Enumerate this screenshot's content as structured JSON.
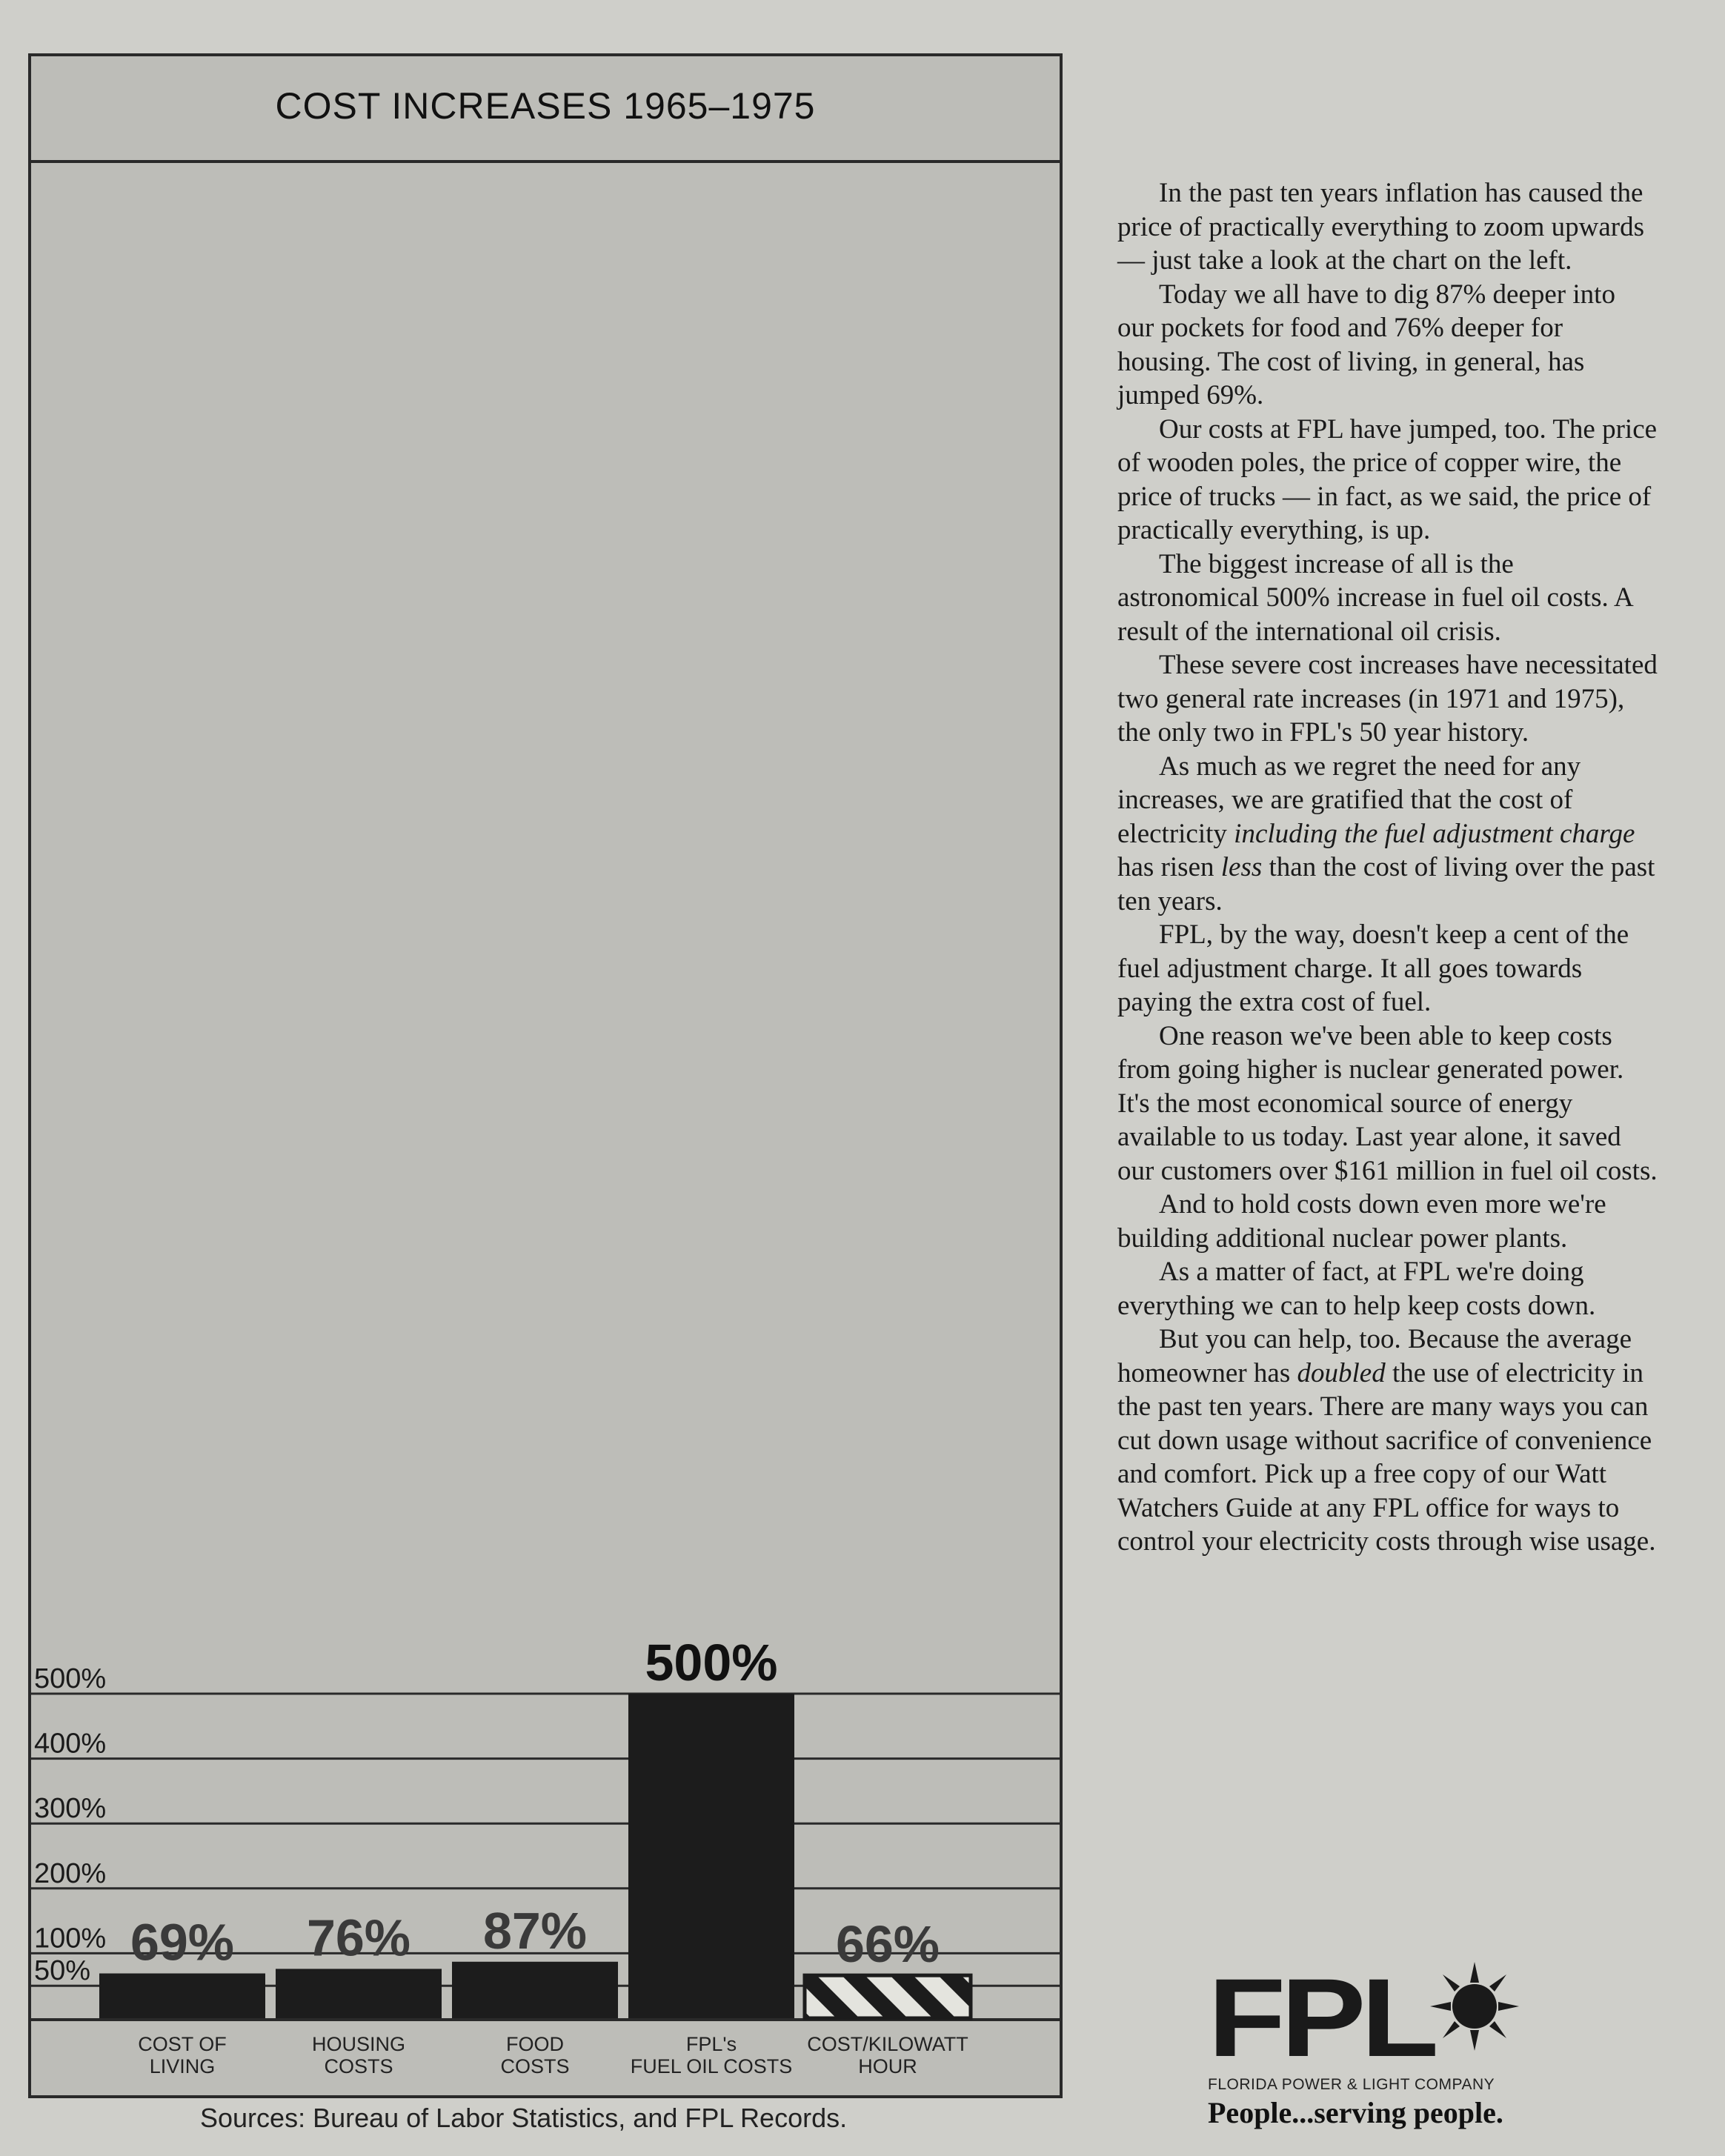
{
  "chart_data": {
    "type": "bar",
    "title": "COST INCREASES 1965–1975",
    "categories": [
      "COST OF|LIVING",
      "HOUSING|COSTS",
      "FOOD|COSTS",
      "FPL's|FUEL OIL COSTS",
      "COST/KILOWATT|HOUR"
    ],
    "values": [
      69,
      76,
      87,
      500,
      66
    ],
    "value_labels": [
      "69%",
      "76%",
      "87%",
      "500%",
      "66%"
    ],
    "y_ticks": [
      {
        "value": 50,
        "label": "50%"
      },
      {
        "value": 100,
        "label": "100%"
      },
      {
        "value": 200,
        "label": "200%"
      },
      {
        "value": 300,
        "label": "300%"
      },
      {
        "value": 400,
        "label": "400%"
      },
      {
        "value": 500,
        "label": "500%"
      }
    ],
    "ylim": [
      0,
      600
    ],
    "xlabel": "",
    "ylabel": "",
    "grid": true,
    "colors": {
      "bar": "#1c1c1c",
      "hatched_bar": "#1c1c1c",
      "background": "#bdbdb8",
      "grid": "#2a2a2a"
    }
  },
  "sources": "Sources: Bureau of Labor Statistics, and FPL Records.",
  "body_paragraphs": [
    "In the past ten years inflation has caused the price of practically everything to zoom upwards — just take a look at the chart on the left.",
    "Today we all have to dig 87% deeper into our pockets for food and 76% deeper for housing. The cost of living, in general, has jumped 69%.",
    "Our costs at FPL have jumped, too. The price of wooden poles, the price of copper wire, the price of trucks — in fact, as we said, the price of practically everything, is up.",
    "The biggest increase of all is the astronomical 500% increase in fuel oil costs. A result of the international oil crisis.",
    "These severe cost increases have necessitated two general rate increases (in 1971 and 1975), the only two in FPL's 50 year history.",
    "As much as we regret the need for any increases, we are gratified that the cost of electricity including the fuel adjustment charge has risen less than the cost of living over the past ten years.",
    "FPL, by the way, doesn't keep a cent of the fuel adjustment charge. It all goes towards paying the extra cost of fuel.",
    "One reason we've been able to keep costs from going higher is nuclear generated power. It's the most economical source of energy available to us today. Last year alone, it saved our customers over $161 million in fuel oil costs.",
    "And to hold costs down even more we're building additional nuclear power plants.",
    "As a matter of fact, at FPL we're doing everything we can to help keep costs down.",
    "But you can help, too. Because the average homeowner has doubled the use of electricity in the past ten years. There are many ways you can cut down usage without sacrifice of convenience and comfort. Pick up a free copy of our Watt Watchers Guide at any FPL office for ways to control your electricity costs through wise usage."
  ],
  "logo": {
    "mark": "FPL",
    "company": "FLORIDA POWER & LIGHT COMPANY",
    "slogan": "People...serving people."
  }
}
